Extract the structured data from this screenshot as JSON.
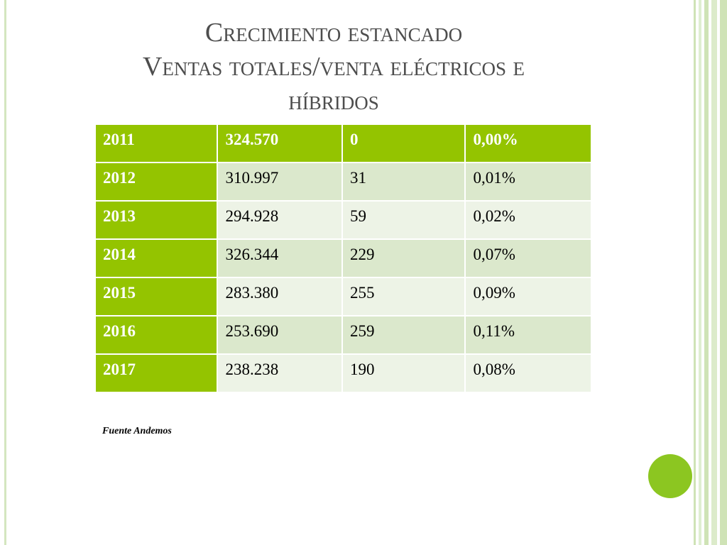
{
  "title": {
    "line1": "Crecimiento estancado",
    "line2": "Ventas totales/venta eléctricos e",
    "line3": "híbridos"
  },
  "table": {
    "rows": [
      [
        "2011",
        "324.570",
        "0",
        "0,00%"
      ],
      [
        "2012",
        "310.997",
        "31",
        "0,01%"
      ],
      [
        "2013",
        "294.928",
        "59",
        "0,02%"
      ],
      [
        "2014",
        "326.344",
        "229",
        "0,07%"
      ],
      [
        "2015",
        "283.380",
        "255",
        "0,09%"
      ],
      [
        "2016",
        "253.690",
        "259",
        "0,11%"
      ],
      [
        "2017",
        "238.238",
        "190",
        "0,08%"
      ]
    ]
  },
  "source": "Fuente Andemos",
  "colors": {
    "accent_green": "#94c400",
    "row_band_dark": "#dbe8cc",
    "row_band_light": "#edf3e6",
    "title_gray": "#4d4d4d"
  }
}
